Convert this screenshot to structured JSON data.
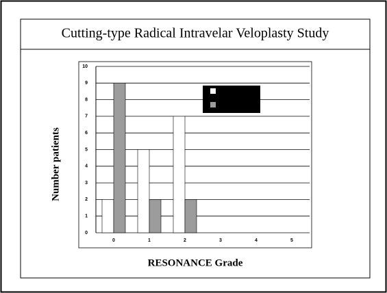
{
  "chart_data": {
    "type": "bar",
    "title": "Cutting-type Radical Intravelar Veloplasty Study",
    "xlabel": "RESONANCE Grade",
    "ylabel": "Number patients",
    "categories": [
      "0",
      "1",
      "2",
      "3",
      "4",
      "5"
    ],
    "series": [
      {
        "color": "#ffffff",
        "values": [
          2,
          5,
          7,
          0,
          0,
          0
        ]
      },
      {
        "color": "#9c9c9c",
        "values": [
          9,
          2,
          2,
          0,
          0,
          0
        ]
      }
    ],
    "ylim": [
      0,
      10
    ],
    "yticks": [
      0,
      1,
      2,
      3,
      4,
      5,
      6,
      7,
      8,
      9,
      10
    ],
    "grid": true
  }
}
